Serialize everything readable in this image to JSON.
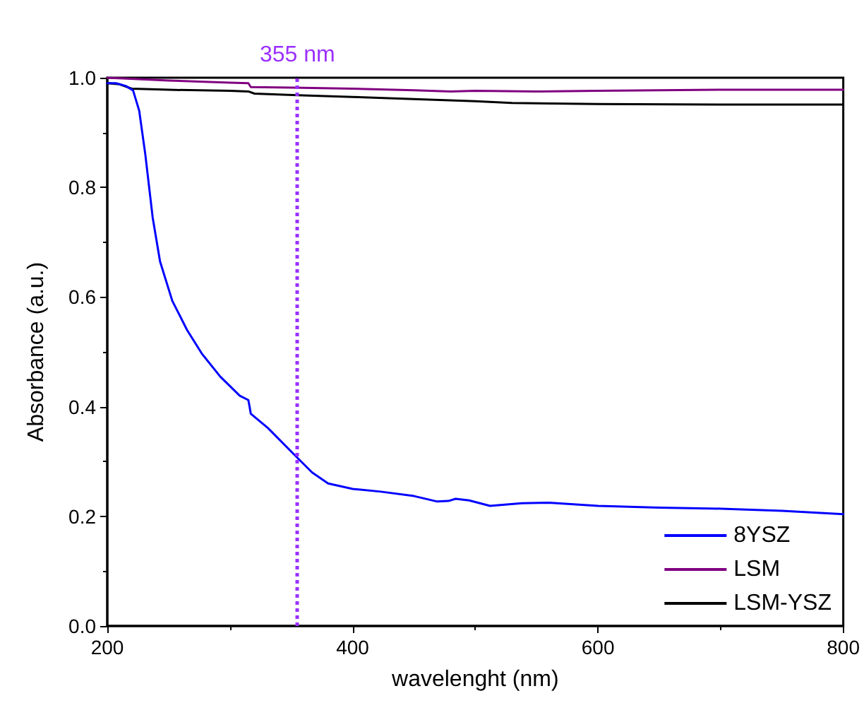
{
  "chart_data": {
    "type": "line",
    "xlabel": "wavelenght (nm)",
    "ylabel": "Absorbance (a.u.)",
    "xlim": [
      200,
      800
    ],
    "xticks": [
      200,
      400,
      600,
      800
    ],
    "ylim": [
      0,
      1.0
    ],
    "yticks": [
      {
        "value": 0,
        "label": "0.0"
      },
      0.2,
      0.4,
      0.6,
      0.8,
      {
        "value": 1,
        "label": "1.0"
      }
    ],
    "grid": false,
    "legend": "bottom right",
    "marker": "none",
    "line_style": "solid",
    "series": [
      {
        "name": "8YSZ",
        "color": "#0000ff",
        "x": [
          200,
          207,
          215,
          221,
          226,
          231,
          237,
          243,
          253,
          265,
          277,
          292,
          308,
          315,
          316,
          317,
          331,
          354,
          367,
          380,
          400,
          423,
          450,
          469,
          478,
          484,
          495,
          512,
          538,
          560,
          600,
          650,
          700,
          750,
          800
        ],
        "values": [
          0.99,
          0.99,
          0.985,
          0.977,
          0.94,
          0.86,
          0.745,
          0.665,
          0.593,
          0.54,
          0.497,
          0.455,
          0.42,
          0.412,
          0.4,
          0.387,
          0.361,
          0.309,
          0.28,
          0.26,
          0.25,
          0.245,
          0.237,
          0.227,
          0.228,
          0.232,
          0.229,
          0.219,
          0.224,
          0.225,
          0.219,
          0.216,
          0.214,
          0.21,
          0.204
        ]
      },
      {
        "name": "LSM",
        "color": "#800080",
        "x": [
          200,
          250,
          300,
          315,
          317,
          350,
          400,
          450,
          480,
          500,
          550,
          600,
          700,
          800
        ],
        "values": [
          1.0,
          0.995,
          0.991,
          0.99,
          0.983,
          0.982,
          0.98,
          0.977,
          0.975,
          0.976,
          0.975,
          0.976,
          0.978,
          0.978
        ]
      },
      {
        "name": "LSM-YSZ",
        "color": "#000000",
        "x": [
          200,
          210,
          220,
          250,
          300,
          315,
          320,
          355,
          400,
          450,
          500,
          530,
          600,
          700,
          800
        ],
        "values": [
          0.99,
          0.988,
          0.98,
          0.978,
          0.976,
          0.975,
          0.971,
          0.968,
          0.965,
          0.961,
          0.957,
          0.954,
          0.952,
          0.951,
          0.951
        ]
      }
    ],
    "ref_lines": [
      {
        "axis": "x",
        "value": 355,
        "label": "355 nm",
        "color": "#9b30ff",
        "line_style": "dotted"
      }
    ]
  }
}
